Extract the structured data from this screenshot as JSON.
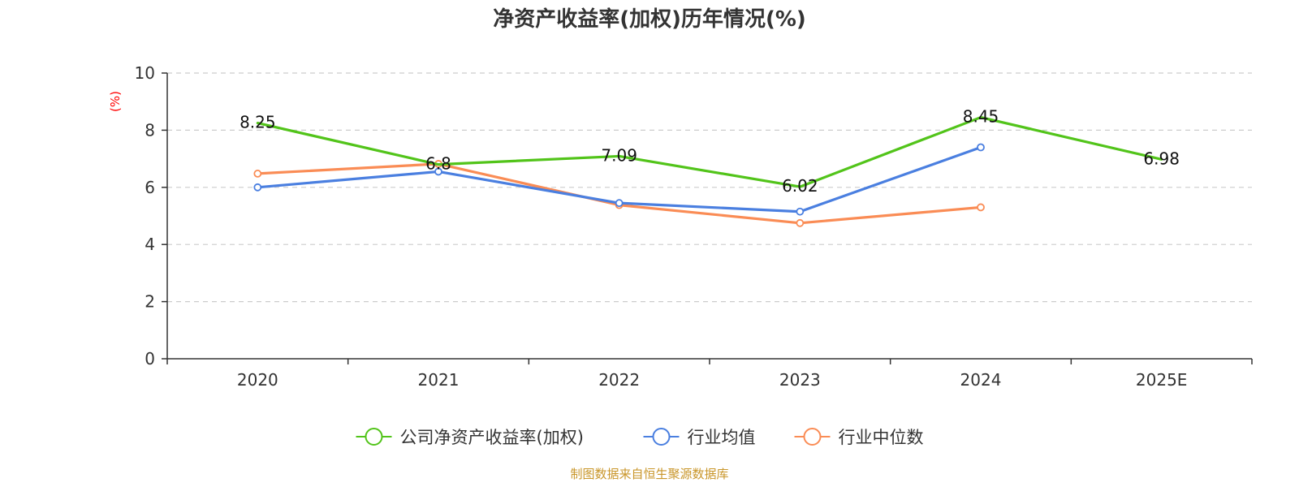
{
  "chart_data": {
    "type": "line",
    "title": "净资产收益率(加权)历年情况(%)",
    "xlabel": "",
    "ylabel": "(%)",
    "categories": [
      "2020",
      "2021",
      "2022",
      "2023",
      "2024",
      "2025E"
    ],
    "ylim": [
      0,
      10
    ],
    "yticks": [
      0,
      2,
      4,
      6,
      8,
      10
    ],
    "grid": true,
    "legend_position": "bottom",
    "series": [
      {
        "name": "公司净资产收益率(加权)",
        "color": "#52c41a",
        "values": [
          8.25,
          6.8,
          7.09,
          6.02,
          8.45,
          6.98
        ],
        "labels": [
          "8.25",
          "6.8",
          "7.09",
          "6.02",
          "8.45",
          "6.98"
        ],
        "show_markers": false
      },
      {
        "name": "行业均值",
        "color": "#4a7fe0",
        "values": [
          6.0,
          6.55,
          5.45,
          5.15,
          7.4,
          null
        ],
        "show_markers": true
      },
      {
        "name": "行业中位数",
        "color": "#fa8c55",
        "values": [
          6.48,
          6.82,
          5.38,
          4.75,
          5.3,
          null
        ],
        "show_markers": true
      }
    ]
  },
  "footer": {
    "source": "制图数据来自恒生聚源数据库"
  }
}
